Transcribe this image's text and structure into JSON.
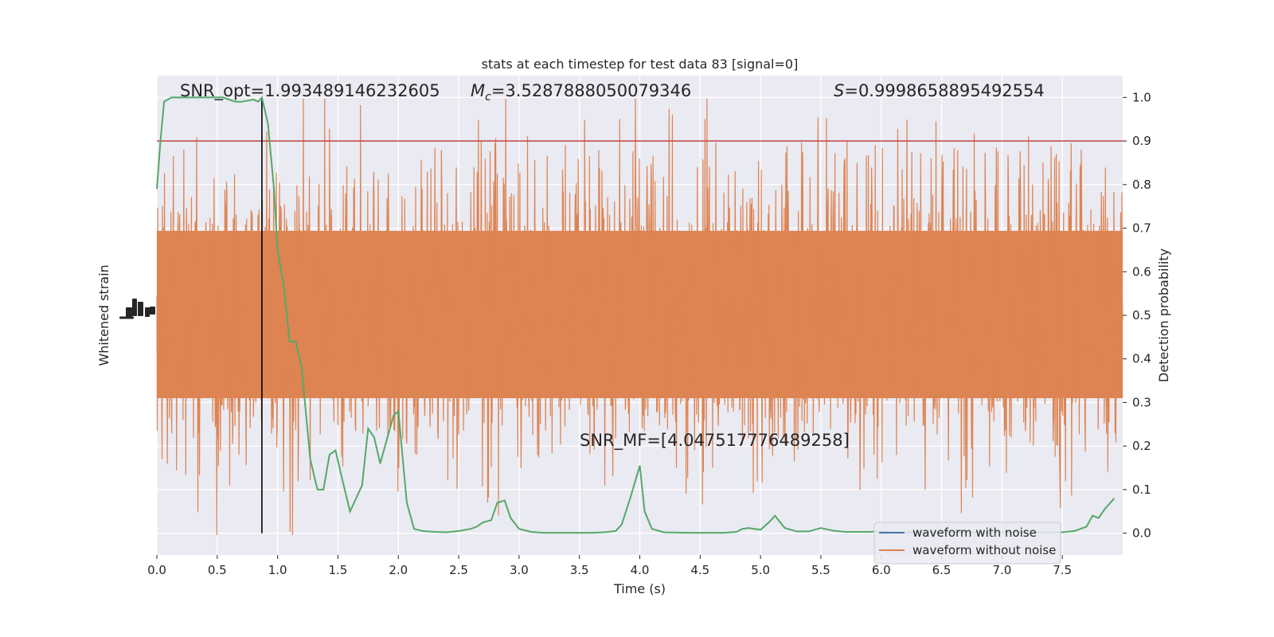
{
  "chart_data": {
    "type": "line",
    "title": "stats at each timestep for test data 83 [signal=0]",
    "xlabel": "Time (s)",
    "ylabel_left": "Whitened strain",
    "ylabel_right": "Detection probability",
    "xlim": [
      0.0,
      8.0
    ],
    "ylim_right": [
      -0.05,
      1.05
    ],
    "x_ticks": [
      "0.0",
      "0.5",
      "1.0",
      "1.5",
      "2.0",
      "2.5",
      "3.0",
      "3.5",
      "4.0",
      "4.5",
      "5.0",
      "5.5",
      "6.0",
      "6.5",
      "7.0",
      "7.5"
    ],
    "y_ticks_right": [
      "0.0",
      "0.1",
      "0.2",
      "0.3",
      "0.4",
      "0.5",
      "0.6",
      "0.7",
      "0.8",
      "0.9",
      "1.0"
    ],
    "grid": true,
    "legend_position": "lower-right",
    "annotations": {
      "snr_opt": "SNR_opt=1.993489146232605",
      "mc_symbol": "M",
      "mc_sub": "c",
      "mc_value": "=3.5287888050079346",
      "s_symbol": "S",
      "s_value": "=0.9998658895492554",
      "snr_mf": "SNR_MF=[4.047517776489258]"
    },
    "threshold": {
      "y": 0.9,
      "color": "#c44e52"
    },
    "marker_line": {
      "x": 0.87,
      "color": "#000000"
    },
    "series": [
      {
        "name": "waveform with noise",
        "color": "#4c72b0"
      },
      {
        "name": "waveform without noise",
        "color": "#dd8452"
      },
      {
        "color": "#55a868",
        "x": [
          0.0,
          0.03,
          0.06,
          0.12,
          0.25,
          0.4,
          0.55,
          0.65,
          0.7,
          0.8,
          0.84,
          0.87,
          0.92,
          0.97,
          1.0,
          1.05,
          1.1,
          1.15,
          1.2,
          1.27,
          1.33,
          1.38,
          1.43,
          1.48,
          1.53,
          1.6,
          1.65,
          1.7,
          1.75,
          1.8,
          1.85,
          1.9,
          1.96,
          2.0,
          2.07,
          2.13,
          2.2,
          2.3,
          2.4,
          2.5,
          2.6,
          2.65,
          2.7,
          2.77,
          2.82,
          2.88,
          2.93,
          3.0,
          3.1,
          3.2,
          3.4,
          3.6,
          3.7,
          3.8,
          3.85,
          3.92,
          4.0,
          4.04,
          4.1,
          4.2,
          4.4,
          4.6,
          4.7,
          4.8,
          4.85,
          4.9,
          5.0,
          5.07,
          5.12,
          5.2,
          5.3,
          5.4,
          5.5,
          5.6,
          5.7,
          5.8,
          5.9,
          6.0,
          6.1,
          6.2,
          6.3,
          6.4,
          6.5,
          6.6,
          6.7,
          6.8,
          6.9,
          7.0,
          7.1,
          7.2,
          7.3,
          7.4,
          7.5,
          7.6,
          7.65,
          7.7,
          7.75,
          7.8,
          7.85,
          7.93
        ],
        "values": [
          0.79,
          0.9,
          0.99,
          1.0,
          1.0,
          1.0,
          1.0,
          0.99,
          0.99,
          0.995,
          0.99,
          1.0,
          0.94,
          0.79,
          0.65,
          0.57,
          0.44,
          0.44,
          0.38,
          0.17,
          0.1,
          0.1,
          0.18,
          0.19,
          0.13,
          0.05,
          0.08,
          0.11,
          0.24,
          0.22,
          0.16,
          0.21,
          0.27,
          0.28,
          0.07,
          0.01,
          0.005,
          0.003,
          0.002,
          0.005,
          0.01,
          0.015,
          0.025,
          0.03,
          0.07,
          0.075,
          0.035,
          0.01,
          0.003,
          0.001,
          0.001,
          0.001,
          0.002,
          0.005,
          0.02,
          0.08,
          0.155,
          0.05,
          0.01,
          0.002,
          0.001,
          0.001,
          0.001,
          0.003,
          0.01,
          0.012,
          0.008,
          0.025,
          0.04,
          0.012,
          0.004,
          0.004,
          0.012,
          0.006,
          0.003,
          0.003,
          0.003,
          0.004,
          0.002,
          0.002,
          0.002,
          0.002,
          0.003,
          0.002,
          0.002,
          0.002,
          0.002,
          0.002,
          0.002,
          0.002,
          0.002,
          0.002,
          0.002,
          0.005,
          0.01,
          0.015,
          0.04,
          0.035,
          0.055,
          0.08
        ]
      }
    ]
  }
}
